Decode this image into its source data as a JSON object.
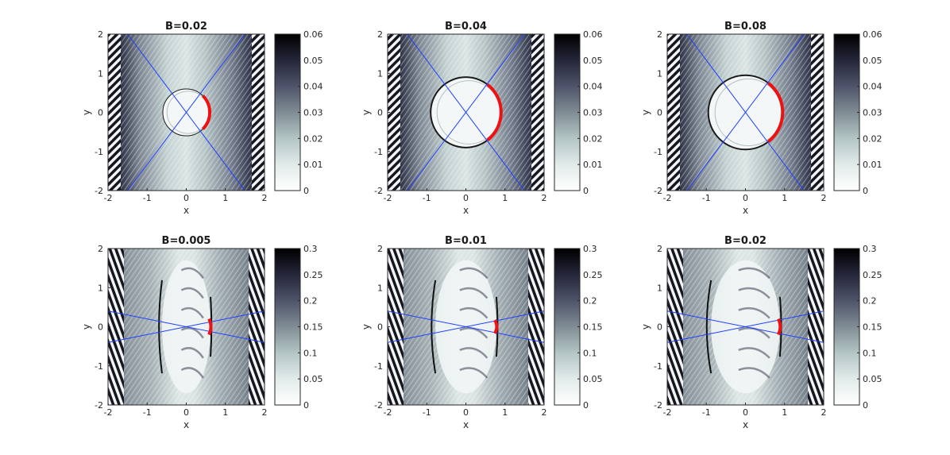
{
  "chart_data": [
    {
      "type": "heatmap",
      "title": "B=0.02",
      "xlabel": "x",
      "ylabel": "y",
      "xlim": [
        -2,
        2
      ],
      "ylim": [
        -2,
        2
      ],
      "x_ticks": [
        "-2",
        "-1",
        "0",
        "1",
        "2"
      ],
      "y_ticks": [
        "-2",
        "-1",
        "0",
        "1",
        "2"
      ],
      "colorbar": {
        "range": [
          0,
          0.06
        ],
        "ticks": [
          "0",
          "0.01",
          "0.02",
          "0.03",
          "0.04",
          "0.05",
          "0.06"
        ]
      },
      "circle_radius": 0.6,
      "red_arc_half_angle_deg": 45,
      "blue_lines": [
        [
          [
            -1.5,
            2
          ],
          [
            1.5,
            -2
          ]
        ],
        [
          [
            -1.5,
            -2
          ],
          [
            1.5,
            2
          ]
        ]
      ],
      "stripe_style": "diagonal"
    },
    {
      "type": "heatmap",
      "title": "B=0.04",
      "xlabel": "x",
      "ylabel": "y",
      "xlim": [
        -2,
        2
      ],
      "ylim": [
        -2,
        2
      ],
      "x_ticks": [
        "-2",
        "-1",
        "0",
        "1",
        "2"
      ],
      "y_ticks": [
        "-2",
        "-1",
        "0",
        "1",
        "2"
      ],
      "colorbar": {
        "range": [
          0,
          0.06
        ],
        "ticks": [
          "0",
          "0.01",
          "0.02",
          "0.03",
          "0.04",
          "0.05",
          "0.06"
        ]
      },
      "circle_radius": 0.9,
      "red_arc_half_angle_deg": 52,
      "blue_lines": [
        [
          [
            -1.5,
            2
          ],
          [
            1.5,
            -2
          ]
        ],
        [
          [
            -1.5,
            -2
          ],
          [
            1.5,
            2
          ]
        ]
      ],
      "stripe_style": "diagonal"
    },
    {
      "type": "heatmap",
      "title": "B=0.08",
      "xlabel": "x",
      "ylabel": "y",
      "xlim": [
        -2,
        2
      ],
      "ylim": [
        -2,
        2
      ],
      "x_ticks": [
        "-2",
        "-1",
        "0",
        "1",
        "2"
      ],
      "y_ticks": [
        "-2",
        "-1",
        "0",
        "1",
        "2"
      ],
      "colorbar": {
        "range": [
          0,
          0.06
        ],
        "ticks": [
          "0",
          "0.01",
          "0.02",
          "0.03",
          "0.04",
          "0.05",
          "0.06"
        ]
      },
      "circle_radius": 0.95,
      "red_arc_half_angle_deg": 52,
      "blue_lines": [
        [
          [
            -1.5,
            2
          ],
          [
            1.5,
            -2
          ]
        ],
        [
          [
            -1.5,
            -2
          ],
          [
            1.5,
            2
          ]
        ]
      ],
      "stripe_style": "diagonal"
    },
    {
      "type": "heatmap",
      "title": "B=0.005",
      "xlabel": "x",
      "ylabel": "y",
      "xlim": [
        -2,
        2
      ],
      "ylim": [
        -2,
        2
      ],
      "x_ticks": [
        "-2",
        "-1",
        "0",
        "1",
        "2"
      ],
      "y_ticks": [
        "-2",
        "-1",
        "0",
        "1",
        "2"
      ],
      "colorbar": {
        "range": [
          0,
          0.3
        ],
        "ticks": [
          "0",
          "0.05",
          "0.1",
          "0.15",
          "0.2",
          "0.25",
          "0.3"
        ]
      },
      "ellipse_rx": 0.62,
      "ellipse_ry": 1.7,
      "red_arc_half_extent_y": 0.2,
      "blue_lines": [
        [
          [
            -2,
            0.4
          ],
          [
            2,
            -0.4
          ]
        ],
        [
          [
            -2,
            -0.4
          ],
          [
            2,
            0.4
          ]
        ]
      ],
      "stripe_style": "vertical"
    },
    {
      "type": "heatmap",
      "title": "B=0.01",
      "xlabel": "x",
      "ylabel": "y",
      "xlim": [
        -2,
        2
      ],
      "ylim": [
        -2,
        2
      ],
      "x_ticks": [
        "-2",
        "-1",
        "0",
        "1",
        "2"
      ],
      "y_ticks": [
        "-2",
        "-1",
        "0",
        "1",
        "2"
      ],
      "colorbar": {
        "range": [
          0,
          0.3
        ],
        "ticks": [
          "0",
          "0.05",
          "0.1",
          "0.15",
          "0.2",
          "0.25",
          "0.3"
        ]
      },
      "ellipse_rx": 0.78,
      "ellipse_ry": 1.7,
      "red_arc_half_extent_y": 0.17,
      "blue_lines": [
        [
          [
            -2,
            0.4
          ],
          [
            2,
            -0.4
          ]
        ],
        [
          [
            -2,
            -0.4
          ],
          [
            2,
            0.4
          ]
        ]
      ],
      "stripe_style": "vertical"
    },
    {
      "type": "heatmap",
      "title": "B=0.02",
      "xlabel": "x",
      "ylabel": "y",
      "xlim": [
        -2,
        2
      ],
      "ylim": [
        -2,
        2
      ],
      "x_ticks": [
        "-2",
        "-1",
        "0",
        "1",
        "2"
      ],
      "y_ticks": [
        "-2",
        "-1",
        "0",
        "1",
        "2"
      ],
      "colorbar": {
        "range": [
          0,
          0.3
        ],
        "ticks": [
          "0",
          "0.05",
          "0.1",
          "0.15",
          "0.2",
          "0.25",
          "0.3"
        ]
      },
      "ellipse_rx": 0.88,
      "ellipse_ry": 1.7,
      "red_arc_half_extent_y": 0.2,
      "blue_lines": [
        [
          [
            -2,
            0.4
          ],
          [
            2,
            -0.4
          ]
        ],
        [
          [
            -2,
            -0.4
          ],
          [
            2,
            0.4
          ]
        ]
      ],
      "stripe_style": "vertical"
    }
  ],
  "colors": {
    "line_blue": "#1f3fff",
    "arc_red": "#ee1111",
    "colormap": [
      "#ffffff",
      "#e1ebea",
      "#b3c5c4",
      "#7f8c94",
      "#4f546a",
      "#25263a",
      "#000000"
    ]
  }
}
